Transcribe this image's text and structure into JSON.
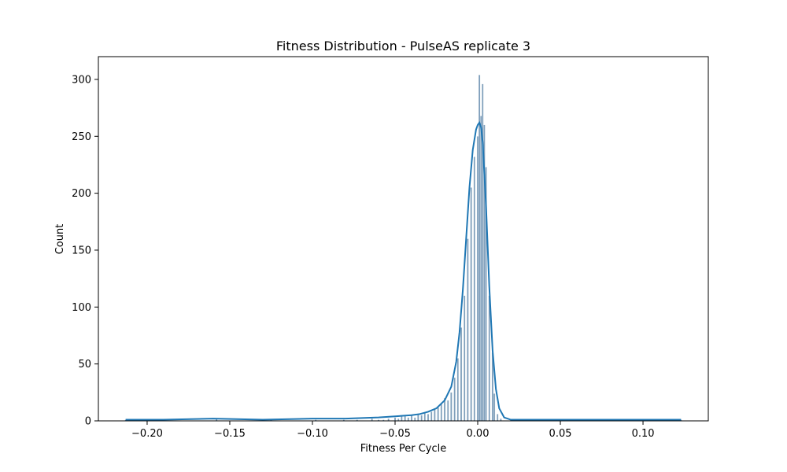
{
  "chart_data": {
    "type": "bar",
    "subtype": "histogram-with-kde",
    "title": "Fitness Distribution - PulseAS replicate 3",
    "xlabel": "Fitness Per Cycle",
    "ylabel": "Count",
    "xlim": [
      -0.2295,
      0.1395
    ],
    "ylim": [
      0,
      320
    ],
    "xticks": [
      -0.2,
      -0.15,
      -0.1,
      -0.05,
      0.0,
      0.05,
      0.1
    ],
    "xtick_labels": [
      "−0.20",
      "−0.15",
      "−0.10",
      "−0.05",
      "0.00",
      "0.05",
      "0.10"
    ],
    "yticks": [
      0,
      50,
      100,
      150,
      200,
      250,
      300
    ],
    "ytick_labels": [
      "0",
      "50",
      "100",
      "150",
      "200",
      "250",
      "300"
    ],
    "grid": false,
    "legend": "none",
    "colors": {
      "bar_fill": "#7f9fbb",
      "bar_edge": "#ffffff",
      "kde_line": "#1f77b4"
    },
    "histogram": [
      {
        "x": -0.213,
        "count": 1
      },
      {
        "x": -0.158,
        "count": 2
      },
      {
        "x": -0.125,
        "count": 1
      },
      {
        "x": -0.098,
        "count": 1
      },
      {
        "x": -0.081,
        "count": 1
      },
      {
        "x": -0.073,
        "count": 1
      },
      {
        "x": -0.064,
        "count": 2
      },
      {
        "x": -0.06,
        "count": 1
      },
      {
        "x": -0.057,
        "count": 1
      },
      {
        "x": -0.054,
        "count": 2
      },
      {
        "x": -0.05,
        "count": 3
      },
      {
        "x": -0.048,
        "count": 2
      },
      {
        "x": -0.046,
        "count": 4
      },
      {
        "x": -0.044,
        "count": 5
      },
      {
        "x": -0.042,
        "count": 3
      },
      {
        "x": -0.04,
        "count": 5
      },
      {
        "x": -0.038,
        "count": 3
      },
      {
        "x": -0.036,
        "count": 6
      },
      {
        "x": -0.034,
        "count": 5
      },
      {
        "x": -0.032,
        "count": 7
      },
      {
        "x": -0.03,
        "count": 6
      },
      {
        "x": -0.028,
        "count": 8
      },
      {
        "x": -0.026,
        "count": 10
      },
      {
        "x": -0.024,
        "count": 12
      },
      {
        "x": -0.022,
        "count": 15
      },
      {
        "x": -0.02,
        "count": 20
      },
      {
        "x": -0.018,
        "count": 18
      },
      {
        "x": -0.016,
        "count": 25
      },
      {
        "x": -0.014,
        "count": 38
      },
      {
        "x": -0.012,
        "count": 55
      },
      {
        "x": -0.01,
        "count": 82
      },
      {
        "x": -0.008,
        "count": 110
      },
      {
        "x": -0.006,
        "count": 160
      },
      {
        "x": -0.004,
        "count": 205
      },
      {
        "x": -0.002,
        "count": 232
      },
      {
        "x": 0.0,
        "count": 250
      },
      {
        "x": 0.001,
        "count": 304
      },
      {
        "x": 0.002,
        "count": 268
      },
      {
        "x": 0.003,
        "count": 296
      },
      {
        "x": 0.004,
        "count": 260
      },
      {
        "x": 0.005,
        "count": 223
      },
      {
        "x": 0.007,
        "count": 110
      },
      {
        "x": 0.009,
        "count": 60
      },
      {
        "x": 0.01,
        "count": 24
      },
      {
        "x": 0.012,
        "count": 6
      },
      {
        "x": 0.014,
        "count": 2
      },
      {
        "x": 0.076,
        "count": 1
      },
      {
        "x": 0.123,
        "count": 1
      }
    ],
    "kde": {
      "x": [
        -0.213,
        -0.19,
        -0.16,
        -0.13,
        -0.1,
        -0.08,
        -0.06,
        -0.05,
        -0.04,
        -0.035,
        -0.03,
        -0.025,
        -0.02,
        -0.016,
        -0.013,
        -0.011,
        -0.009,
        -0.007,
        -0.005,
        -0.003,
        -0.001,
        0.0,
        0.001,
        0.002,
        0.003,
        0.005,
        0.007,
        0.009,
        0.011,
        0.013,
        0.016,
        0.02,
        0.03,
        0.05,
        0.08,
        0.1,
        0.123
      ],
      "y": [
        1,
        1,
        2,
        1,
        2,
        2,
        3,
        4,
        5,
        6,
        8,
        11,
        18,
        30,
        52,
        78,
        115,
        160,
        205,
        238,
        256,
        260,
        262,
        258,
        245,
        190,
        118,
        62,
        28,
        11,
        3,
        1,
        1,
        1,
        1,
        1,
        1
      ]
    }
  }
}
